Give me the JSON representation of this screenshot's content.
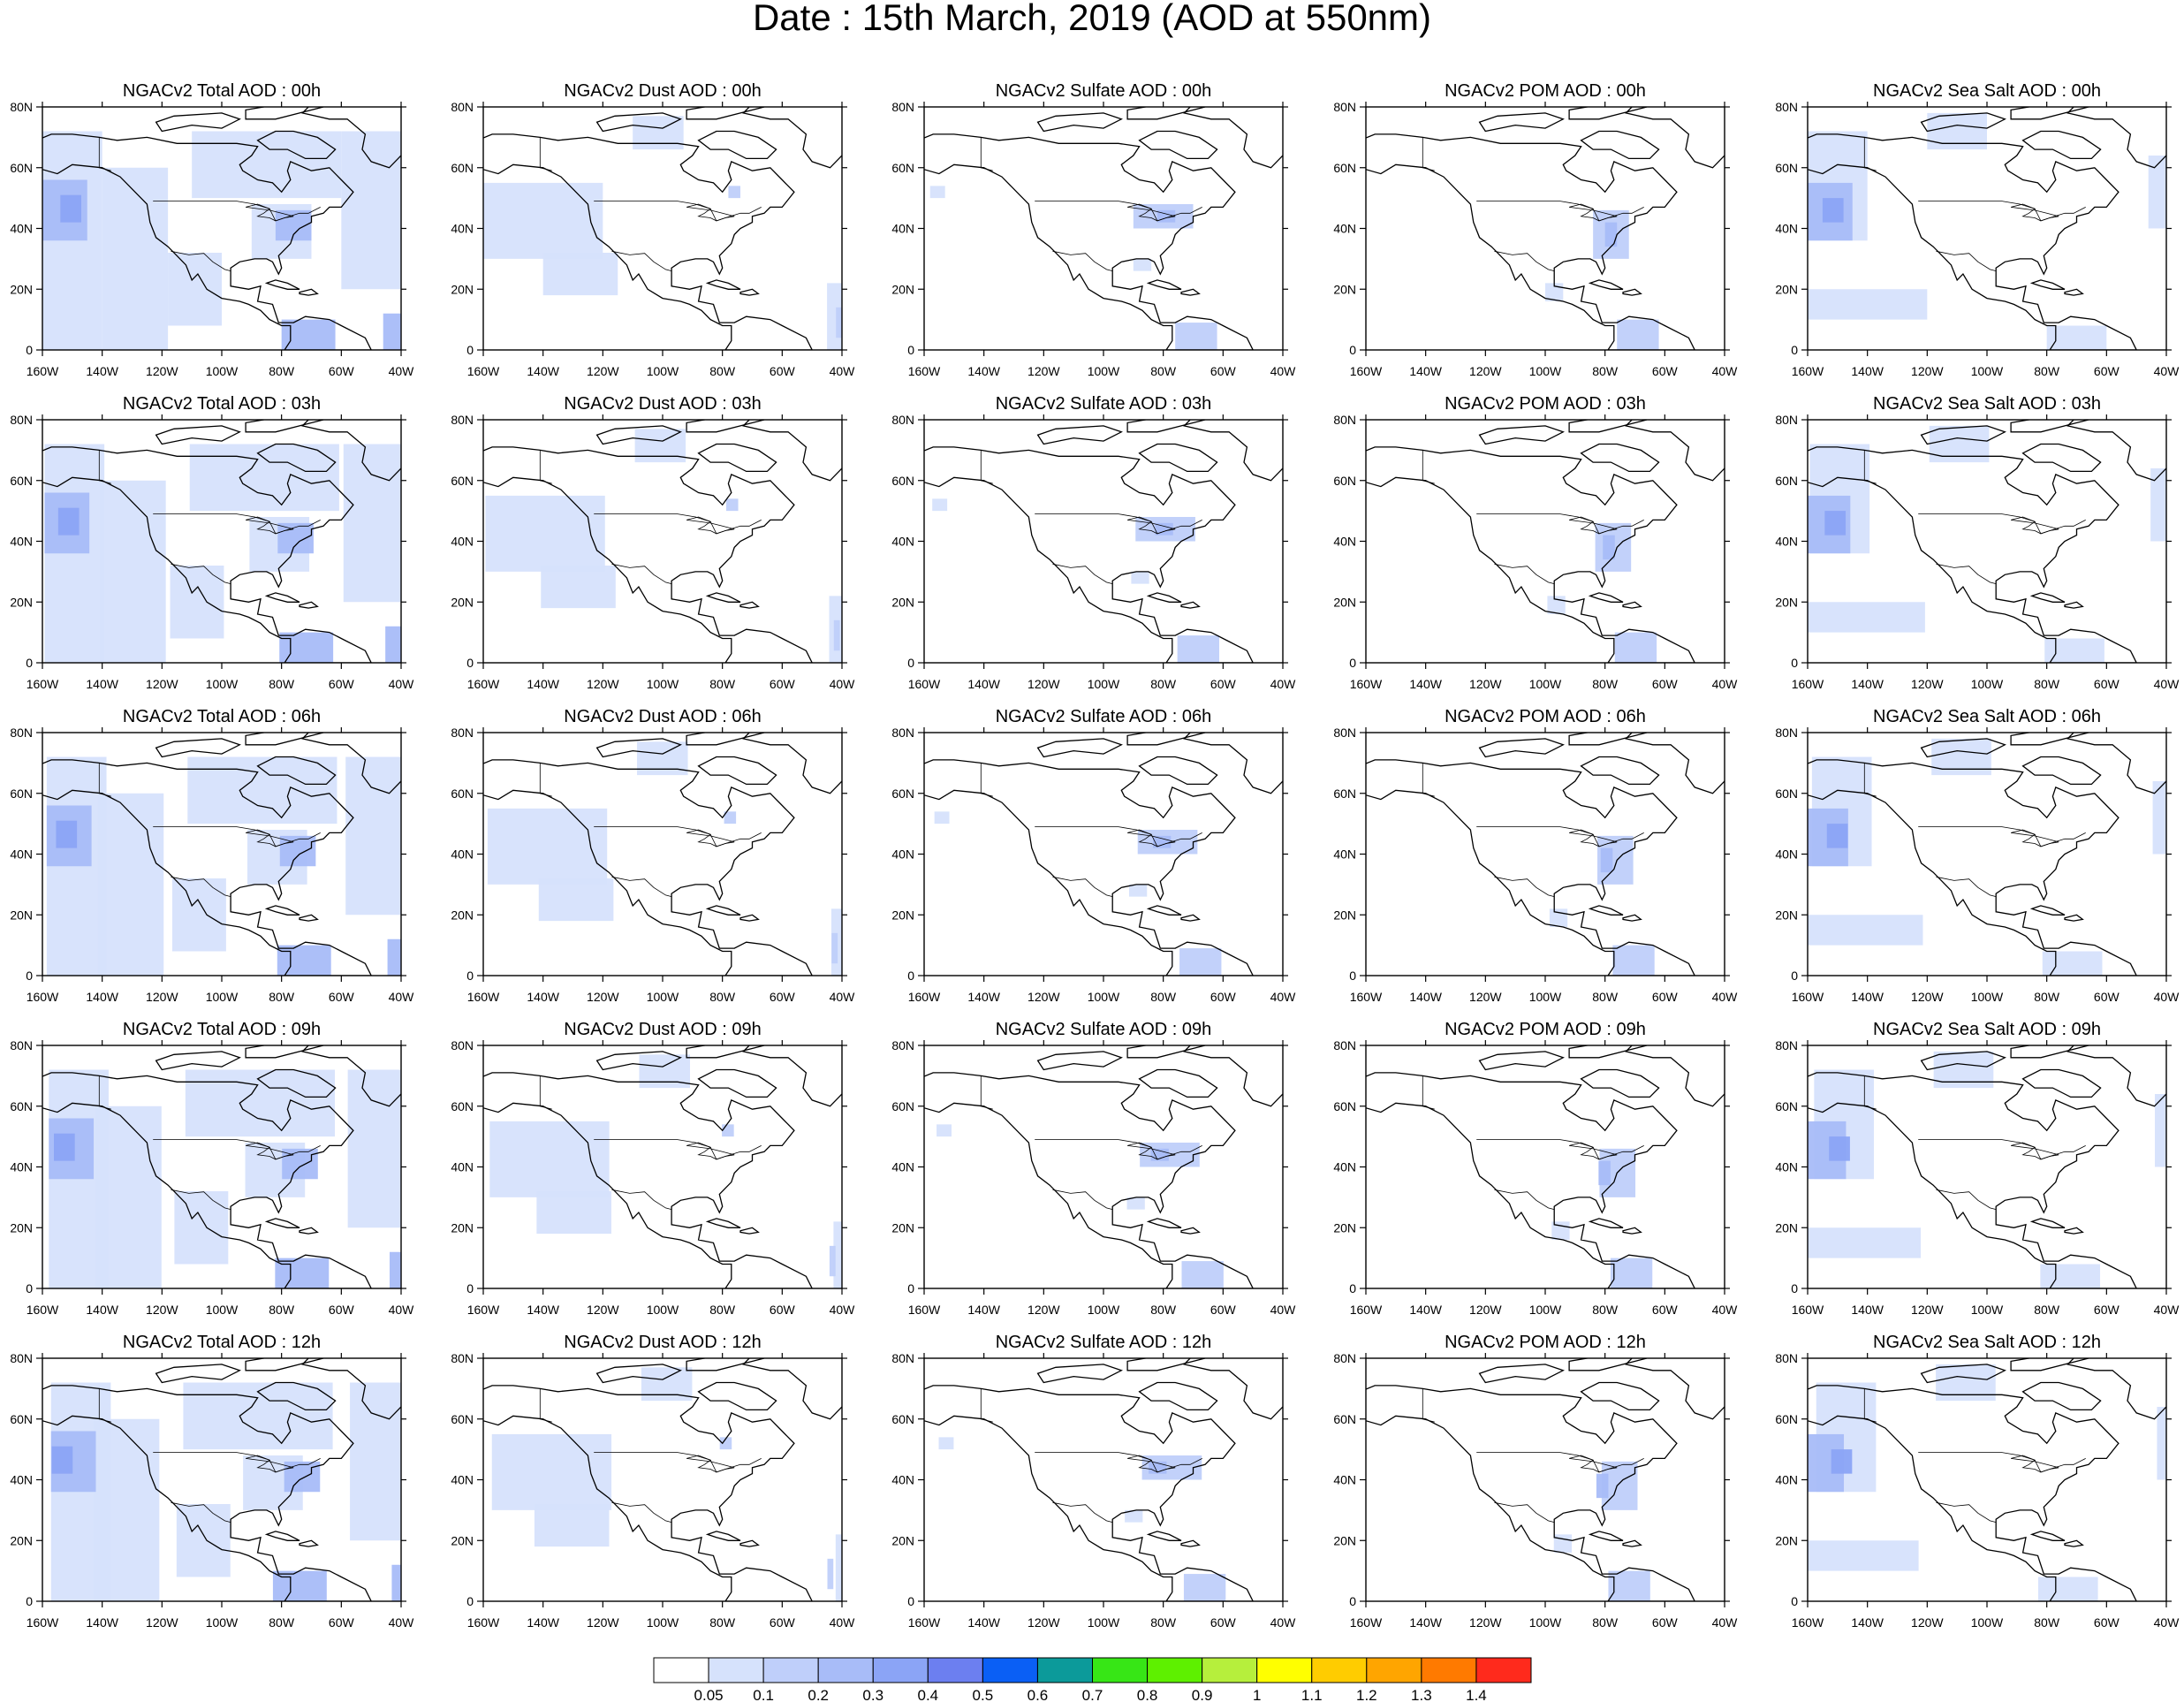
{
  "title": "Date : 15th March, 2019 (AOD at 550nm)",
  "rows": [
    {
      "hour": "00h",
      "titles": [
        "NGACv2 Total AOD : 00h",
        "NGACv2 Dust AOD : 00h",
        "NGACv2 Sulfate AOD : 00h",
        "NGACv2 POM AOD : 00h",
        "NGACv2 Sea Salt AOD : 00h"
      ]
    },
    {
      "hour": "03h",
      "titles": [
        "NGACv2 Total AOD : 03h",
        "NGACv2 Dust AOD : 03h",
        "NGACv2 Sulfate AOD : 03h",
        "NGACv2 POM AOD : 03h",
        "NGACv2 Sea Salt AOD : 03h"
      ]
    },
    {
      "hour": "06h",
      "titles": [
        "NGACv2 Total AOD : 06h",
        "NGACv2 Dust AOD : 06h",
        "NGACv2 Sulfate AOD : 06h",
        "NGACv2 POM AOD : 06h",
        "NGACv2 Sea Salt AOD : 06h"
      ]
    },
    {
      "hour": "09h",
      "titles": [
        "NGACv2 Total AOD : 09h",
        "NGACv2 Dust AOD : 09h",
        "NGACv2 Sulfate AOD : 09h",
        "NGACv2 POM AOD : 09h",
        "NGACv2 Sea Salt  AOD : 09h"
      ]
    },
    {
      "hour": "12h",
      "titles": [
        "NGACv2 Total AOD  : 12h",
        "NGACv2 Dust AOD : 12h",
        "NGACv2 Sulfate AOD : 12h",
        "NGACv2 POM  AOD : 12h",
        "NGACv2 Sea Salt  AOD : 12h"
      ]
    }
  ],
  "axes": {
    "lon_ticks": [
      "160W",
      "140W",
      "120W",
      "100W",
      "80W",
      "60W",
      "40W"
    ],
    "lon_values": [
      -160,
      -140,
      -120,
      -100,
      -80,
      -60,
      -40
    ],
    "lat_ticks": [
      "0",
      "20N",
      "40N",
      "60N",
      "80N"
    ],
    "lat_values": [
      0,
      20,
      40,
      60,
      80
    ],
    "lon_range": [
      -160,
      -40
    ],
    "lat_range": [
      0,
      80
    ]
  },
  "colorbar": {
    "labels": [
      "0.05",
      "0.1",
      "0.2",
      "0.3",
      "0.4",
      "0.5",
      "0.6",
      "0.7",
      "0.8",
      "0.9",
      "1",
      "1.1",
      "1.2",
      "1.3",
      "1.4"
    ],
    "colors": [
      "#ffffff",
      "#d6e2fc",
      "#bfcffa",
      "#a8bcf8",
      "#8ba4f6",
      "#6c7ff0",
      "#0a5ff5",
      "#0c9a9a",
      "#37e616",
      "#5ef000",
      "#b6ef3c",
      "#ffff00",
      "#ffcc00",
      "#ffa500",
      "#ff7a00",
      "#ff2a1c"
    ]
  },
  "species_patches": {
    "total": [
      {
        "lon": [
          -160,
          -140
        ],
        "lat": [
          0,
          72
        ],
        "level": 1
      },
      {
        "lon": [
          -140,
          -118
        ],
        "lat": [
          0,
          60
        ],
        "level": 1
      },
      {
        "lon": [
          -118,
          -100
        ],
        "lat": [
          8,
          32
        ],
        "level": 1
      },
      {
        "lon": [
          -110,
          -60
        ],
        "lat": [
          50,
          72
        ],
        "level": 1
      },
      {
        "lon": [
          -60,
          -40
        ],
        "lat": [
          20,
          72
        ],
        "level": 1
      },
      {
        "lon": [
          -90,
          -70
        ],
        "lat": [
          30,
          48
        ],
        "level": 1
      },
      {
        "lon": [
          -160,
          -145
        ],
        "lat": [
          36,
          56
        ],
        "level": 3
      },
      {
        "lon": [
          -154,
          -147
        ],
        "lat": [
          42,
          51
        ],
        "level": 4
      },
      {
        "lon": [
          -82,
          -70
        ],
        "lat": [
          36,
          46
        ],
        "level": 3
      },
      {
        "lon": [
          -80,
          -62
        ],
        "lat": [
          0,
          10
        ],
        "level": 3
      },
      {
        "lon": [
          -46,
          -40
        ],
        "lat": [
          0,
          12
        ],
        "level": 3
      }
    ],
    "dust": [
      {
        "lon": [
          -160,
          -120
        ],
        "lat": [
          30,
          55
        ],
        "level": 1
      },
      {
        "lon": [
          -140,
          -115
        ],
        "lat": [
          18,
          32
        ],
        "level": 1
      },
      {
        "lon": [
          -110,
          -93
        ],
        "lat": [
          66,
          77
        ],
        "level": 1
      },
      {
        "lon": [
          -78,
          -74
        ],
        "lat": [
          50,
          54
        ],
        "level": 2
      },
      {
        "lon": [
          -45,
          -40
        ],
        "lat": [
          0,
          22
        ],
        "level": 1
      },
      {
        "lon": [
          -42,
          -40
        ],
        "lat": [
          4,
          14
        ],
        "level": 2
      }
    ],
    "sulfate": [
      {
        "lon": [
          -90,
          -70
        ],
        "lat": [
          40,
          48
        ],
        "level": 2
      },
      {
        "lon": [
          -82,
          -76
        ],
        "lat": [
          42,
          46
        ],
        "level": 3
      },
      {
        "lon": [
          -158,
          -153
        ],
        "lat": [
          50,
          54
        ],
        "level": 1
      },
      {
        "lon": [
          -90,
          -84
        ],
        "lat": [
          26,
          30
        ],
        "level": 1
      },
      {
        "lon": [
          -76,
          -62
        ],
        "lat": [
          0,
          9
        ],
        "level": 2
      }
    ],
    "pom": [
      {
        "lon": [
          -84,
          -72
        ],
        "lat": [
          30,
          46
        ],
        "level": 2
      },
      {
        "lon": [
          -80,
          -76
        ],
        "lat": [
          34,
          42
        ],
        "level": 3
      },
      {
        "lon": [
          -100,
          -94
        ],
        "lat": [
          16,
          22
        ],
        "level": 1
      },
      {
        "lon": [
          -76,
          -62
        ],
        "lat": [
          0,
          10
        ],
        "level": 2
      }
    ],
    "seasalt": [
      {
        "lon": [
          -160,
          -140
        ],
        "lat": [
          36,
          72
        ],
        "level": 1
      },
      {
        "lon": [
          -160,
          -145
        ],
        "lat": [
          36,
          55
        ],
        "level": 3
      },
      {
        "lon": [
          -155,
          -148
        ],
        "lat": [
          42,
          50
        ],
        "level": 4
      },
      {
        "lon": [
          -160,
          -120
        ],
        "lat": [
          10,
          20
        ],
        "level": 1
      },
      {
        "lon": [
          -120,
          -100
        ],
        "lat": [
          66,
          78
        ],
        "level": 1
      },
      {
        "lon": [
          -80,
          -60
        ],
        "lat": [
          0,
          8
        ],
        "level": 1
      },
      {
        "lon": [
          -46,
          -40
        ],
        "lat": [
          40,
          64
        ],
        "level": 1
      }
    ]
  }
}
